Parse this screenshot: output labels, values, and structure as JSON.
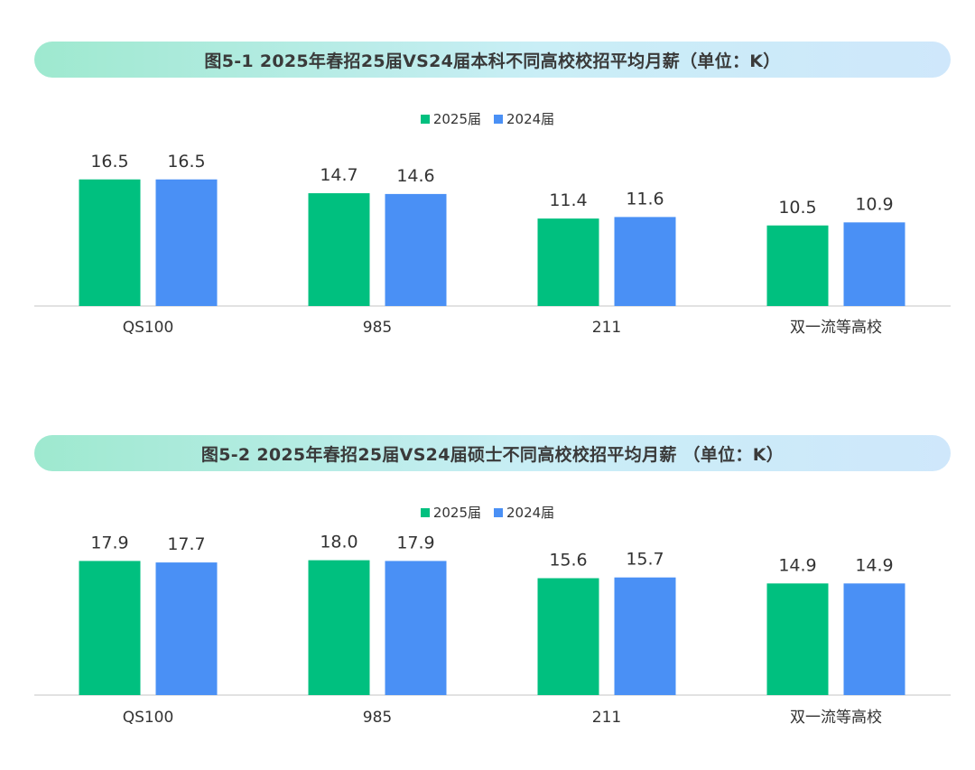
{
  "colors": {
    "series_2025": "#00c07f",
    "series_2024": "#4a90f5"
  },
  "chart_data": [
    {
      "type": "bar",
      "title": "图5-1 2025年春招25届VS24届本科不同高校校招平均月薪（单位：K）",
      "categories": [
        "QS100",
        "985",
        "211",
        "双一流等高校"
      ],
      "series": [
        {
          "name": "2025届",
          "values": [
            16.5,
            14.7,
            11.4,
            10.5
          ]
        },
        {
          "name": "2024届",
          "values": [
            16.5,
            14.6,
            11.6,
            10.9
          ]
        }
      ],
      "ylim": [
        0,
        20
      ],
      "legend": "top-center",
      "grid": false
    },
    {
      "type": "bar",
      "title": "图5-2 2025年春招25届VS24届硕士不同高校校招平均月薪 （单位：K）",
      "categories": [
        "QS100",
        "985",
        "211",
        "双一流等高校"
      ],
      "series": [
        {
          "name": "2025届",
          "values": [
            17.9,
            18.0,
            15.6,
            14.9
          ]
        },
        {
          "name": "2024届",
          "values": [
            17.7,
            17.9,
            15.7,
            14.9
          ]
        }
      ],
      "ylim": [
        0,
        21
      ],
      "legend": "top-center",
      "grid": false
    }
  ]
}
